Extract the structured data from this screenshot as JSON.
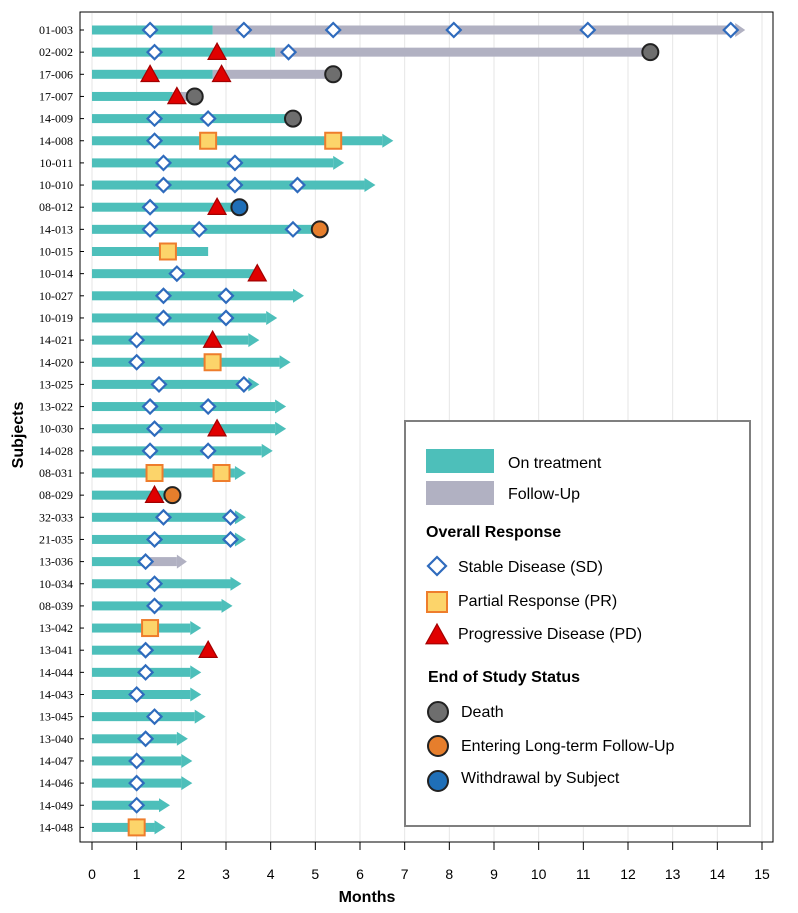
{
  "chart_data": {
    "type": "swimmer",
    "xlabel": "Months",
    "ylabel": "Subjects",
    "xlim": [
      0,
      15
    ],
    "xticks": [
      0,
      1,
      2,
      3,
      4,
      5,
      6,
      7,
      8,
      9,
      10,
      11,
      12,
      13,
      14,
      15
    ],
    "grid": "vertical",
    "colors": {
      "treatment": "#4dbfba",
      "followup": "#b1b1c2",
      "sd_stroke": "#2f6bbd",
      "sd_fill": "#ffffff",
      "pr_fill": "#fcd46a",
      "pr_stroke": "#ee7d2c",
      "pd_fill": "#e00000",
      "death": "#6e6e6e",
      "ltfu": "#e67e2c",
      "withdrawal": "#1f6fb8"
    },
    "subjects": [
      {
        "id": "01-003",
        "treat_end": 2.7,
        "arrow": false,
        "fu_end": 14.4,
        "fu_arrow": true,
        "markers": [
          {
            "t": "SD",
            "x": 1.3
          },
          {
            "t": "SD",
            "x": 3.4
          },
          {
            "t": "SD",
            "x": 5.4
          },
          {
            "t": "SD",
            "x": 8.1
          },
          {
            "t": "SD",
            "x": 11.1
          },
          {
            "t": "SD",
            "x": 14.3
          }
        ],
        "eos": null
      },
      {
        "id": "02-002",
        "treat_end": 4.1,
        "arrow": false,
        "fu_end": 12.4,
        "fu_arrow": false,
        "markers": [
          {
            "t": "SD",
            "x": 1.4
          },
          {
            "t": "PD",
            "x": 2.8
          },
          {
            "t": "SD",
            "x": 4.4
          }
        ],
        "eos": {
          "t": "death",
          "x": 12.5
        }
      },
      {
        "id": "17-006",
        "treat_end": 2.7,
        "arrow": false,
        "fu_end": 5.4,
        "fu_arrow": false,
        "markers": [
          {
            "t": "PD",
            "x": 1.3
          },
          {
            "t": "PD",
            "x": 2.9
          }
        ],
        "eos": {
          "t": "death",
          "x": 5.4
        }
      },
      {
        "id": "17-007",
        "treat_end": 1.8,
        "arrow": false,
        "fu_end": 2.3,
        "fu_arrow": false,
        "markers": [
          {
            "t": "PD",
            "x": 1.9
          }
        ],
        "eos": {
          "t": "death",
          "x": 2.3
        }
      },
      {
        "id": "14-009",
        "treat_end": 4.4,
        "arrow": false,
        "markers": [
          {
            "t": "SD",
            "x": 1.4
          },
          {
            "t": "SD",
            "x": 2.6
          }
        ],
        "eos": {
          "t": "death",
          "x": 4.5
        }
      },
      {
        "id": "14-008",
        "treat_end": 6.5,
        "arrow": true,
        "markers": [
          {
            "t": "SD",
            "x": 1.4
          },
          {
            "t": "PR",
            "x": 2.6
          },
          {
            "t": "PR",
            "x": 5.4
          }
        ],
        "eos": null
      },
      {
        "id": "10-011",
        "treat_end": 5.4,
        "arrow": true,
        "markers": [
          {
            "t": "SD",
            "x": 1.6
          },
          {
            "t": "SD",
            "x": 3.2
          }
        ],
        "eos": null
      },
      {
        "id": "10-010",
        "treat_end": 6.1,
        "arrow": true,
        "markers": [
          {
            "t": "SD",
            "x": 1.6
          },
          {
            "t": "SD",
            "x": 3.2
          },
          {
            "t": "SD",
            "x": 4.6
          }
        ],
        "eos": null
      },
      {
        "id": "08-012",
        "treat_end": 3.3,
        "arrow": false,
        "markers": [
          {
            "t": "SD",
            "x": 1.3
          },
          {
            "t": "PD",
            "x": 2.8
          }
        ],
        "eos": {
          "t": "withdrawal",
          "x": 3.3
        }
      },
      {
        "id": "14-013",
        "treat_end": 5.0,
        "arrow": false,
        "markers": [
          {
            "t": "SD",
            "x": 1.3
          },
          {
            "t": "SD",
            "x": 2.4
          },
          {
            "t": "SD",
            "x": 4.5
          }
        ],
        "eos": {
          "t": "ltfu",
          "x": 5.1
        }
      },
      {
        "id": "10-015",
        "treat_end": 2.6,
        "arrow": false,
        "markers": [
          {
            "t": "PR",
            "x": 1.7
          }
        ],
        "eos": null
      },
      {
        "id": "10-014",
        "treat_end": 3.7,
        "arrow": false,
        "markers": [
          {
            "t": "SD",
            "x": 1.9
          },
          {
            "t": "PD",
            "x": 3.7
          }
        ],
        "eos": null
      },
      {
        "id": "10-027",
        "treat_end": 4.5,
        "arrow": true,
        "markers": [
          {
            "t": "SD",
            "x": 1.6
          },
          {
            "t": "SD",
            "x": 3.0
          }
        ],
        "eos": null
      },
      {
        "id": "10-019",
        "treat_end": 3.9,
        "arrow": true,
        "markers": [
          {
            "t": "SD",
            "x": 1.6
          },
          {
            "t": "SD",
            "x": 3.0
          }
        ],
        "eos": null
      },
      {
        "id": "14-021",
        "treat_end": 3.5,
        "arrow": true,
        "markers": [
          {
            "t": "SD",
            "x": 1.0
          },
          {
            "t": "PD",
            "x": 2.7
          }
        ],
        "eos": null
      },
      {
        "id": "14-020",
        "treat_end": 4.2,
        "arrow": true,
        "markers": [
          {
            "t": "SD",
            "x": 1.0
          },
          {
            "t": "PR",
            "x": 2.7
          }
        ],
        "eos": null
      },
      {
        "id": "13-025",
        "treat_end": 3.5,
        "arrow": true,
        "markers": [
          {
            "t": "SD",
            "x": 1.5
          },
          {
            "t": "SD",
            "x": 3.4
          }
        ],
        "eos": null
      },
      {
        "id": "13-022",
        "treat_end": 4.1,
        "arrow": true,
        "markers": [
          {
            "t": "SD",
            "x": 1.3
          },
          {
            "t": "SD",
            "x": 2.6
          }
        ],
        "eos": null
      },
      {
        "id": "10-030",
        "treat_end": 4.1,
        "arrow": true,
        "markers": [
          {
            "t": "SD",
            "x": 1.4
          },
          {
            "t": "PD",
            "x": 2.8
          }
        ],
        "eos": null
      },
      {
        "id": "14-028",
        "treat_end": 3.8,
        "arrow": true,
        "markers": [
          {
            "t": "SD",
            "x": 1.3
          },
          {
            "t": "SD",
            "x": 2.6
          }
        ],
        "eos": null
      },
      {
        "id": "08-031",
        "treat_end": 3.2,
        "arrow": true,
        "markers": [
          {
            "t": "PR",
            "x": 1.4
          },
          {
            "t": "PR",
            "x": 2.9
          }
        ],
        "eos": null
      },
      {
        "id": "08-029",
        "treat_end": 1.7,
        "arrow": false,
        "markers": [
          {
            "t": "PD",
            "x": 1.4
          }
        ],
        "eos": {
          "t": "ltfu",
          "x": 1.8
        }
      },
      {
        "id": "32-033",
        "treat_end": 3.2,
        "arrow": true,
        "markers": [
          {
            "t": "SD",
            "x": 1.6
          },
          {
            "t": "SD",
            "x": 3.1
          }
        ],
        "eos": null
      },
      {
        "id": "21-035",
        "treat_end": 3.2,
        "arrow": true,
        "markers": [
          {
            "t": "SD",
            "x": 1.4
          },
          {
            "t": "SD",
            "x": 3.1
          }
        ],
        "eos": null
      },
      {
        "id": "13-036",
        "treat_end": 1.3,
        "arrow": false,
        "fu_end": 1.9,
        "fu_arrow": true,
        "markers": [
          {
            "t": "SD",
            "x": 1.2
          }
        ],
        "eos": null
      },
      {
        "id": "10-034",
        "treat_end": 3.1,
        "arrow": true,
        "markers": [
          {
            "t": "SD",
            "x": 1.4
          }
        ],
        "eos": null
      },
      {
        "id": "08-039",
        "treat_end": 2.9,
        "arrow": true,
        "markers": [
          {
            "t": "SD",
            "x": 1.4
          }
        ],
        "eos": null
      },
      {
        "id": "13-042",
        "treat_end": 2.2,
        "arrow": true,
        "markers": [
          {
            "t": "PR",
            "x": 1.3
          }
        ],
        "eos": null
      },
      {
        "id": "13-041",
        "treat_end": 2.6,
        "arrow": false,
        "markers": [
          {
            "t": "SD",
            "x": 1.2
          },
          {
            "t": "PD",
            "x": 2.6
          }
        ],
        "eos": null
      },
      {
        "id": "14-044",
        "treat_end": 2.2,
        "arrow": true,
        "markers": [
          {
            "t": "SD",
            "x": 1.2
          }
        ],
        "eos": null
      },
      {
        "id": "14-043",
        "treat_end": 2.2,
        "arrow": true,
        "markers": [
          {
            "t": "SD",
            "x": 1.0
          }
        ],
        "eos": null
      },
      {
        "id": "13-045",
        "treat_end": 2.3,
        "arrow": true,
        "markers": [
          {
            "t": "SD",
            "x": 1.4
          }
        ],
        "eos": null
      },
      {
        "id": "13-040",
        "treat_end": 1.9,
        "arrow": true,
        "markers": [
          {
            "t": "SD",
            "x": 1.2
          }
        ],
        "eos": null
      },
      {
        "id": "14-047",
        "treat_end": 2.0,
        "arrow": true,
        "markers": [
          {
            "t": "SD",
            "x": 1.0
          }
        ],
        "eos": null
      },
      {
        "id": "14-046",
        "treat_end": 2.0,
        "arrow": true,
        "markers": [
          {
            "t": "SD",
            "x": 1.0
          }
        ],
        "eos": null
      },
      {
        "id": "14-049",
        "treat_end": 1.5,
        "arrow": true,
        "markers": [
          {
            "t": "SD",
            "x": 1.0
          }
        ],
        "eos": null
      },
      {
        "id": "14-048",
        "treat_end": 1.4,
        "arrow": true,
        "markers": [
          {
            "t": "PR",
            "x": 1.0
          }
        ],
        "eos": null
      }
    ],
    "legend": {
      "placement": "bottom-right",
      "on_treatment": "On treatment",
      "follow_up": "Follow-Up",
      "response_title": "Overall Response",
      "sd": "Stable Disease (SD)",
      "pr": "Partial Response (PR)",
      "pd": "Progressive Disease (PD)",
      "eos_title": "End of Study Status",
      "death": "Death",
      "ltfu": "Entering Long-term Follow-Up",
      "withdrawal": "Withdrawal by Subject"
    }
  }
}
